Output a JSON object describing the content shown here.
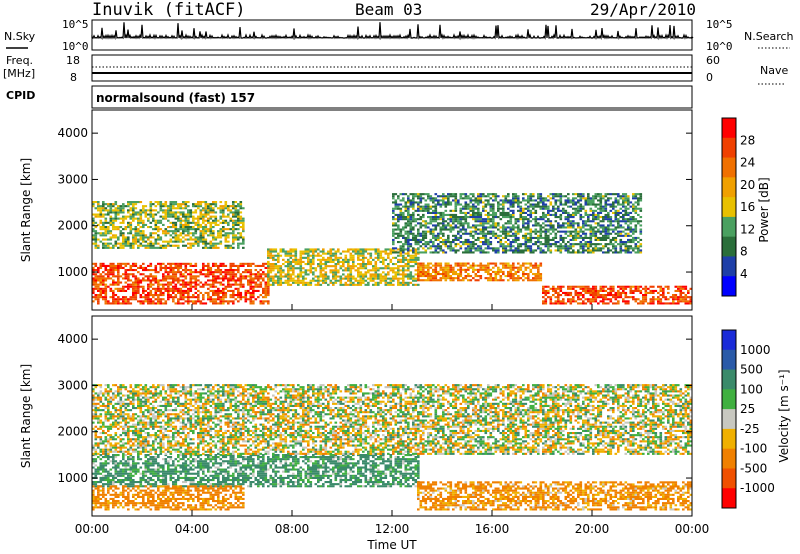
{
  "header": {
    "station": "Inuvik (fitACF)",
    "beam": "Beam 03",
    "date": "29/Apr/2010"
  },
  "summary_panels": {
    "nsky_label": "N.Sky",
    "nsky_ticks": [
      "10^5",
      "10^0"
    ],
    "nsearch_label": "N.Search",
    "nsearch_ticks": [
      "10^5",
      "10^0"
    ],
    "freq_label": "Freq.",
    "freq_unit": "[MHz]",
    "freq_ticks": [
      "18",
      "8"
    ],
    "nave_label": "Nave",
    "nave_ticks": [
      "60",
      "0"
    ],
    "cpid_label": "CPID",
    "cpid_value": "normalsound (fast) 157"
  },
  "colors": {
    "power_scale": [
      "#0000ff",
      "#1e3fa8",
      "#2a6e3a",
      "#4aa060",
      "#e8c000",
      "#f0a000",
      "#f07000",
      "#f04000",
      "#ff0000"
    ],
    "velocity_scale": [
      "#1a2bd8",
      "#2a5aa8",
      "#3a8a6a",
      "#40b040",
      "#c8c8c0",
      "#f0b000",
      "#f08000",
      "#f05000",
      "#ff0000"
    ]
  },
  "chart_data": [
    {
      "type": "heatmap",
      "name": "power",
      "ylabel": "Slant Range [km]",
      "yticks": [
        "1000",
        "2000",
        "3000",
        "4000"
      ],
      "ylim": [
        180,
        4500
      ],
      "xlim": [
        "00:00",
        "24:00"
      ],
      "colorbar_label": "Power [dB]",
      "colorbar_ticks": [
        "4",
        "8",
        "12",
        "16",
        "20",
        "24",
        "28"
      ],
      "colorbar_range": [
        0,
        32
      ],
      "bands": [
        {
          "t0": 0,
          "t1": 7,
          "r0": 300,
          "r1": 1200,
          "level": 26
        },
        {
          "t0": 7,
          "t1": 13,
          "r0": 700,
          "r1": 1500,
          "level": 16
        },
        {
          "t0": 13,
          "t1": 18,
          "r0": 800,
          "r1": 1200,
          "level": 22
        },
        {
          "t0": 18,
          "t1": 24,
          "r0": 300,
          "r1": 700,
          "level": 26
        },
        {
          "t0": 0,
          "t1": 6,
          "r0": 1500,
          "r1": 2500,
          "level": 14
        },
        {
          "t0": 12,
          "t1": 22,
          "r0": 1400,
          "r1": 2700,
          "level": 10
        }
      ]
    },
    {
      "type": "heatmap",
      "name": "velocity",
      "ylabel": "Slant Range [km]",
      "yticks": [
        "1000",
        "2000",
        "3000",
        "4000"
      ],
      "ylim": [
        180,
        4500
      ],
      "xticks": [
        "00:00",
        "04:00",
        "08:00",
        "12:00",
        "16:00",
        "20:00",
        "00:00"
      ],
      "xlabel": "Time UT",
      "colorbar_label": "Velocity [m s⁻¹]",
      "colorbar_ticks": [
        "1000",
        "500",
        "100",
        "25",
        "-25",
        "-100",
        "-500",
        "-1000"
      ],
      "bands": [
        {
          "t0": 0,
          "t1": 13,
          "r0": 800,
          "r1": 1500,
          "level": 150
        },
        {
          "t0": 0,
          "t1": 6,
          "r0": 300,
          "r1": 800,
          "level": -200
        },
        {
          "t0": 13,
          "t1": 24,
          "r0": 300,
          "r1": 900,
          "level": -150
        },
        {
          "t0": 0,
          "t1": 24,
          "r0": 1500,
          "r1": 3000,
          "level": 0
        }
      ]
    }
  ]
}
